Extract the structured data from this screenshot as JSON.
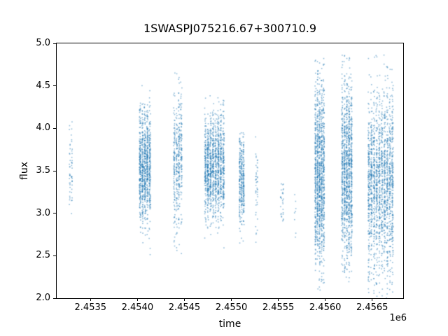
{
  "chart_data": {
    "type": "scatter",
    "title": "1SWASPJ075216.67+300710.9",
    "xlabel": "time",
    "ylabel": "flux",
    "x_offset_label": "1e6",
    "xlim": [
      2.45314,
      2.45683
    ],
    "ylim": [
      2.0,
      5.0
    ],
    "xtick_values": [
      2.4535,
      2.454,
      2.4545,
      2.455,
      2.4555,
      2.456,
      2.4565
    ],
    "xtick_labels": [
      "2.4535",
      "2.4540",
      "2.4545",
      "2.4550",
      "2.4555",
      "2.4560",
      "2.4565"
    ],
    "ytick_values": [
      2.0,
      2.5,
      3.0,
      3.5,
      4.0,
      4.5,
      5.0
    ],
    "ytick_labels": [
      "2.0",
      "2.5",
      "3.0",
      "3.5",
      "4.0",
      "4.5",
      "5.0"
    ],
    "marker_color": "#1f77b4",
    "marker_alpha": 0.5,
    "marker_size_px": 1.6,
    "grid": false,
    "legend": false,
    "seed": 42,
    "clusters": [
      {
        "x_center": 2.45329,
        "x_width": 4e-05,
        "stripes": 2,
        "n": 55,
        "y_mean": 3.5,
        "y_sd": 0.28,
        "y_min": 2.92,
        "y_max": 4.12
      },
      {
        "x_center": 2.45408,
        "x_width": 0.00013,
        "stripes": 5,
        "n": 900,
        "y_mean": 3.55,
        "y_sd": 0.33,
        "y_min": 2.3,
        "y_max": 4.62
      },
      {
        "x_center": 2.45443,
        "x_width": 0.0001,
        "stripes": 4,
        "n": 420,
        "y_mean": 3.6,
        "y_sd": 0.42,
        "y_min": 2.42,
        "y_max": 4.75
      },
      {
        "x_center": 2.45482,
        "x_width": 0.00022,
        "stripes": 8,
        "n": 1250,
        "y_mean": 3.55,
        "y_sd": 0.3,
        "y_min": 2.35,
        "y_max": 4.4
      },
      {
        "x_center": 2.45511,
        "x_width": 6e-05,
        "stripes": 3,
        "n": 330,
        "y_mean": 3.4,
        "y_sd": 0.28,
        "y_min": 2.4,
        "y_max": 3.95
      },
      {
        "x_center": 2.45527,
        "x_width": 3e-05,
        "stripes": 2,
        "n": 45,
        "y_mean": 3.3,
        "y_sd": 0.3,
        "y_min": 2.55,
        "y_max": 3.9
      },
      {
        "x_center": 2.45554,
        "x_width": 4e-05,
        "stripes": 2,
        "n": 28,
        "y_mean": 3.15,
        "y_sd": 0.16,
        "y_min": 2.9,
        "y_max": 3.45
      },
      {
        "x_center": 2.45568,
        "x_width": 2e-05,
        "stripes": 1,
        "n": 8,
        "y_mean": 3.0,
        "y_sd": 0.35,
        "y_min": 2.6,
        "y_max": 3.4
      },
      {
        "x_center": 2.45594,
        "x_width": 0.00011,
        "stripes": 5,
        "n": 1150,
        "y_mean": 3.45,
        "y_sd": 0.55,
        "y_min": 2.05,
        "y_max": 4.9
      },
      {
        "x_center": 2.45623,
        "x_width": 0.00012,
        "stripes": 5,
        "n": 1150,
        "y_mean": 3.5,
        "y_sd": 0.55,
        "y_min": 2.05,
        "y_max": 4.9
      },
      {
        "x_center": 2.45659,
        "x_width": 0.00028,
        "stripes": 10,
        "n": 1700,
        "y_mean": 3.35,
        "y_sd": 0.55,
        "y_min": 2.0,
        "y_max": 4.88
      }
    ]
  }
}
